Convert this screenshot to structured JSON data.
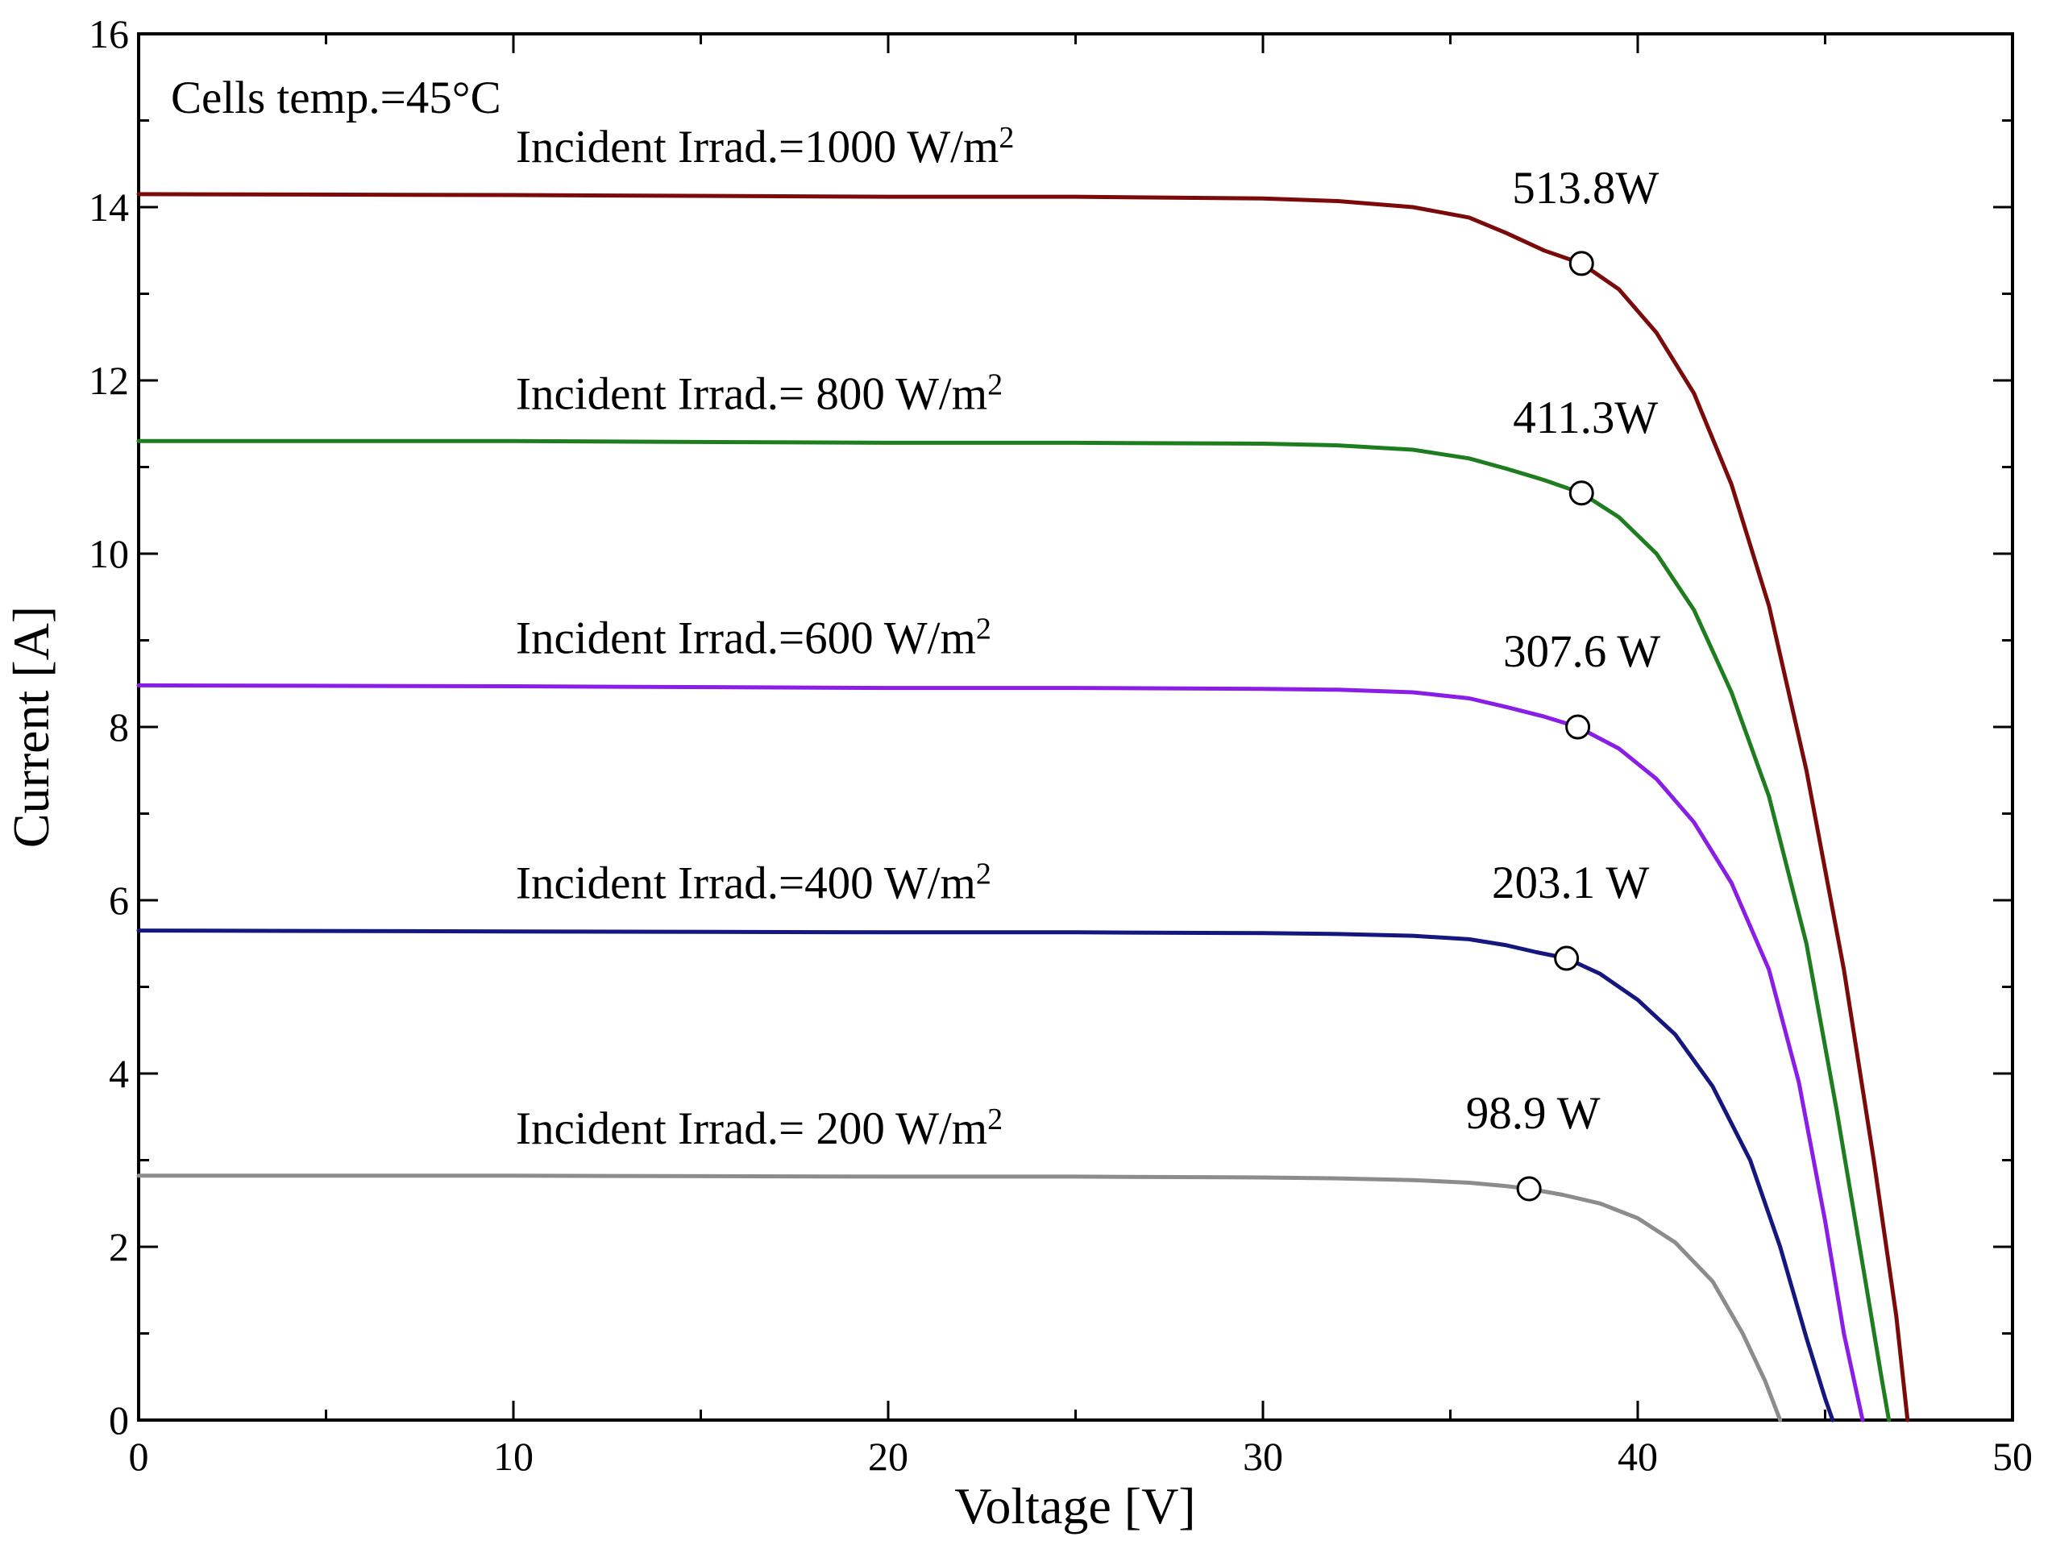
{
  "chart_data": {
    "type": "line",
    "title": "",
    "xlabel": "Voltage [V]",
    "ylabel": "Current [A]",
    "xlim": [
      0,
      50
    ],
    "ylim": [
      0,
      16
    ],
    "x_ticks": [
      0,
      10,
      20,
      30,
      40,
      50
    ],
    "y_ticks": [
      0,
      2,
      4,
      6,
      8,
      10,
      12,
      14,
      16
    ],
    "grid": false,
    "annotation": "Cells temp.=45°C",
    "series": [
      {
        "name": "Incident Irrad.=1000 W/m2",
        "label_main": "Incident Irrad.=1000 W/m",
        "label_sup": "2",
        "color": "#7b0a0a",
        "power_label": "513.8W",
        "mpp": [
          38.5,
          13.35
        ],
        "points": [
          [
            0,
            14.15
          ],
          [
            10,
            14.14
          ],
          [
            20,
            14.12
          ],
          [
            25,
            14.12
          ],
          [
            30,
            14.1
          ],
          [
            32,
            14.07
          ],
          [
            34,
            14.0
          ],
          [
            35.5,
            13.88
          ],
          [
            36.5,
            13.7
          ],
          [
            37.5,
            13.5
          ],
          [
            38.5,
            13.35
          ],
          [
            39.5,
            13.05
          ],
          [
            40.5,
            12.55
          ],
          [
            41.5,
            11.85
          ],
          [
            42.5,
            10.8
          ],
          [
            43.5,
            9.4
          ],
          [
            44.5,
            7.5
          ],
          [
            45.5,
            5.2
          ],
          [
            46.3,
            3.0
          ],
          [
            46.9,
            1.2
          ],
          [
            47.2,
            0.0
          ]
        ]
      },
      {
        "name": "Incident Irrad.= 800 W/m2",
        "label_main": "Incident Irrad.= 800 W/m",
        "label_sup": "2",
        "color": "#1e7d1e",
        "power_label": "411.3W",
        "mpp": [
          38.5,
          10.7
        ],
        "points": [
          [
            0,
            11.3
          ],
          [
            10,
            11.3
          ],
          [
            20,
            11.28
          ],
          [
            25,
            11.28
          ],
          [
            30,
            11.27
          ],
          [
            32,
            11.25
          ],
          [
            34,
            11.2
          ],
          [
            35.5,
            11.1
          ],
          [
            36.5,
            10.98
          ],
          [
            37.5,
            10.85
          ],
          [
            38.5,
            10.7
          ],
          [
            39.5,
            10.42
          ],
          [
            40.5,
            10.0
          ],
          [
            41.5,
            9.35
          ],
          [
            42.5,
            8.4
          ],
          [
            43.5,
            7.2
          ],
          [
            44.5,
            5.5
          ],
          [
            45.3,
            3.6
          ],
          [
            46.0,
            1.8
          ],
          [
            46.5,
            0.5
          ],
          [
            46.7,
            0.0
          ]
        ]
      },
      {
        "name": "Incident Irrad.=600 W/m2",
        "label_main": "Incident Irrad.=600 W/m",
        "label_sup": "2",
        "color": "#8a1ee6",
        "power_label": "307.6 W",
        "mpp": [
          38.4,
          8.0
        ],
        "points": [
          [
            0,
            8.48
          ],
          [
            10,
            8.47
          ],
          [
            20,
            8.45
          ],
          [
            25,
            8.45
          ],
          [
            30,
            8.44
          ],
          [
            32,
            8.43
          ],
          [
            34,
            8.4
          ],
          [
            35.5,
            8.33
          ],
          [
            36.5,
            8.23
          ],
          [
            37.5,
            8.12
          ],
          [
            38.4,
            8.0
          ],
          [
            39.5,
            7.75
          ],
          [
            40.5,
            7.4
          ],
          [
            41.5,
            6.9
          ],
          [
            42.5,
            6.2
          ],
          [
            43.5,
            5.2
          ],
          [
            44.3,
            3.9
          ],
          [
            45.0,
            2.3
          ],
          [
            45.5,
            1.0
          ],
          [
            46.0,
            0.0
          ]
        ]
      },
      {
        "name": "Incident Irrad.=400 W/m2",
        "label_main": "Incident Irrad.=400 W/m",
        "label_sup": "2",
        "color": "#15167e",
        "power_label": "203.1 W",
        "mpp": [
          38.1,
          5.33
        ],
        "points": [
          [
            0,
            5.65
          ],
          [
            10,
            5.64
          ],
          [
            20,
            5.63
          ],
          [
            25,
            5.63
          ],
          [
            30,
            5.62
          ],
          [
            32,
            5.61
          ],
          [
            34,
            5.59
          ],
          [
            35.5,
            5.55
          ],
          [
            36.5,
            5.48
          ],
          [
            37.3,
            5.4
          ],
          [
            38.1,
            5.33
          ],
          [
            39.0,
            5.15
          ],
          [
            40.0,
            4.85
          ],
          [
            41.0,
            4.45
          ],
          [
            42.0,
            3.85
          ],
          [
            43.0,
            3.0
          ],
          [
            43.8,
            2.0
          ],
          [
            44.5,
            0.95
          ],
          [
            45.0,
            0.25
          ],
          [
            45.2,
            0.0
          ]
        ]
      },
      {
        "name": "Incident Irrad.= 200 W/m2",
        "label_main": "Incident Irrad.= 200 W/m",
        "label_sup": "2",
        "color": "#8c8c8c",
        "power_label": "98.9 W",
        "mpp": [
          37.1,
          2.67
        ],
        "points": [
          [
            0,
            2.82
          ],
          [
            10,
            2.82
          ],
          [
            20,
            2.81
          ],
          [
            25,
            2.81
          ],
          [
            30,
            2.8
          ],
          [
            32,
            2.79
          ],
          [
            34,
            2.77
          ],
          [
            35.5,
            2.74
          ],
          [
            36.5,
            2.7
          ],
          [
            37.1,
            2.67
          ],
          [
            38.0,
            2.6
          ],
          [
            39.0,
            2.5
          ],
          [
            40.0,
            2.33
          ],
          [
            41.0,
            2.05
          ],
          [
            42.0,
            1.6
          ],
          [
            42.8,
            1.0
          ],
          [
            43.4,
            0.45
          ],
          [
            43.8,
            0.0
          ]
        ]
      }
    ]
  }
}
